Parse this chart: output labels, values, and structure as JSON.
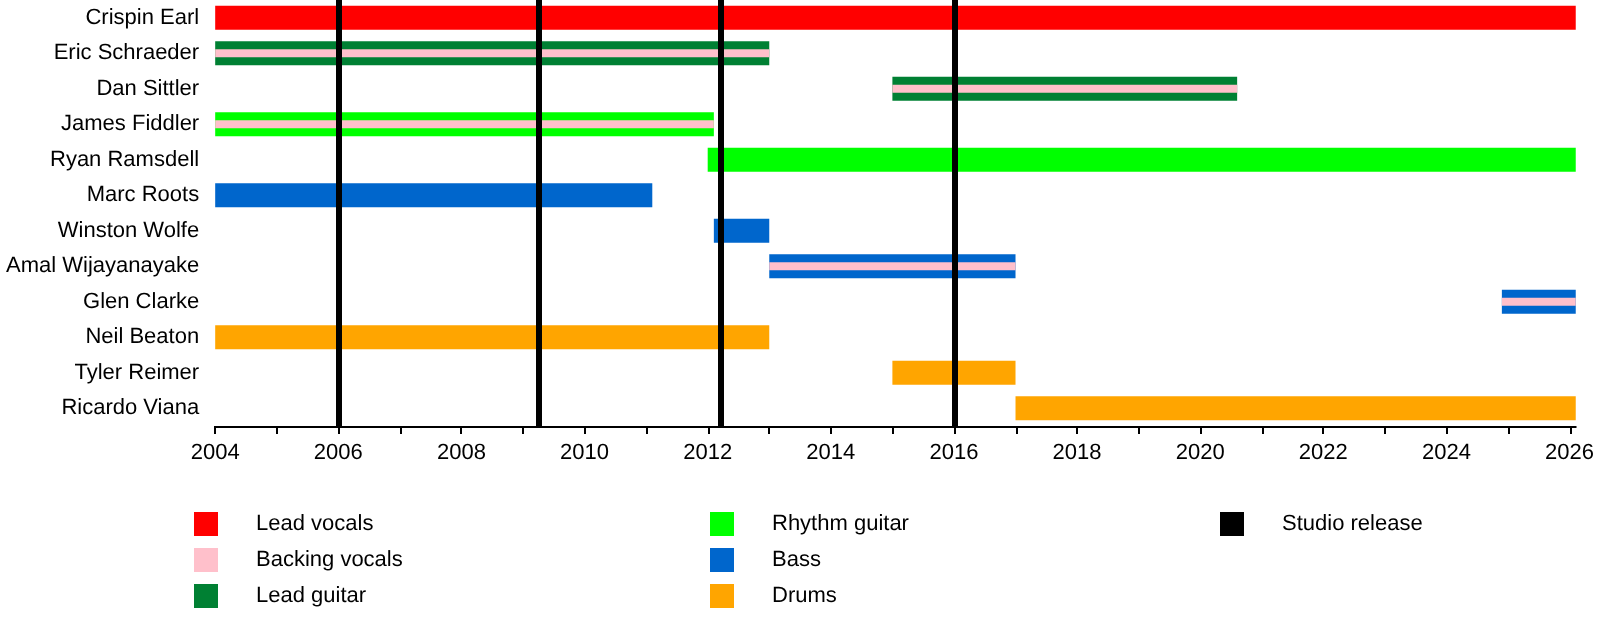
{
  "chart_data": {
    "type": "bar",
    "orientation": "horizontal",
    "categories": [
      "Crispin Earl",
      "Eric Schraeder",
      "Dan Sittler",
      "James Fiddler",
      "Ryan Ramsdell",
      "Marc Roots",
      "Winston Wolfe",
      "Amal Wijayanayake",
      "Glen Clarke",
      "Neil Beaton",
      "Tyler Reimer",
      "Ricardo Viana"
    ],
    "series": [
      {
        "name": "Lead vocals",
        "color": "#ff0000",
        "base": [
          2004,
          null,
          null,
          null,
          null,
          null,
          null,
          null,
          null,
          null,
          null,
          null
        ],
        "values": [
          22.1,
          null,
          null,
          null,
          null,
          null,
          null,
          null,
          null,
          null,
          null,
          null
        ]
      },
      {
        "name": "Backing vocals",
        "color": "#ffc0cb",
        "base": [
          null,
          2004,
          2015,
          2004,
          null,
          null,
          null,
          2013,
          2024.9,
          null,
          null,
          null
        ],
        "values": [
          null,
          9,
          5.6,
          8.1,
          null,
          null,
          null,
          4,
          1.2,
          null,
          null,
          null
        ]
      },
      {
        "name": "Lead guitar",
        "color": "#008033",
        "base": [
          null,
          2004,
          2015,
          null,
          null,
          null,
          null,
          null,
          null,
          null,
          null,
          null
        ],
        "values": [
          null,
          9,
          5.6,
          null,
          null,
          null,
          null,
          null,
          null,
          null,
          null,
          null
        ]
      },
      {
        "name": "Rhythm guitar",
        "color": "#00ff00",
        "base": [
          null,
          null,
          null,
          2004,
          2012,
          null,
          null,
          null,
          null,
          null,
          null,
          null
        ],
        "values": [
          null,
          null,
          null,
          8.1,
          14.1,
          null,
          null,
          null,
          null,
          null,
          null,
          null
        ]
      },
      {
        "name": "Bass",
        "color": "#0066cc",
        "base": [
          null,
          null,
          null,
          null,
          null,
          2004,
          2012.1,
          2013,
          2024.9,
          null,
          null,
          null
        ],
        "values": [
          null,
          null,
          null,
          null,
          null,
          7.1,
          0.9,
          4,
          1.2,
          null,
          null,
          null
        ]
      },
      {
        "name": "Drums",
        "color": "#ffa500",
        "base": [
          null,
          null,
          null,
          null,
          null,
          null,
          null,
          null,
          null,
          2004,
          2015,
          2017
        ],
        "values": [
          null,
          null,
          null,
          null,
          null,
          null,
          null,
          null,
          null,
          9,
          2,
          9.1
        ]
      }
    ],
    "xlim": [
      2004,
      2026.1
    ],
    "xticks": [
      2004,
      {
        "value": 2005,
        "label": null
      },
      2006,
      {
        "value": 2007,
        "label": null
      },
      2008,
      {
        "value": 2009,
        "label": null
      },
      2010,
      {
        "value": 2011,
        "label": null
      },
      2012,
      {
        "value": 2013,
        "label": null
      },
      2014,
      {
        "value": 2015,
        "label": null
      },
      2016,
      {
        "value": 2017,
        "label": null
      },
      2018,
      {
        "value": 2019,
        "label": null
      },
      2020,
      {
        "value": 2021,
        "label": null
      },
      2022,
      {
        "value": 2023,
        "label": null
      },
      2024,
      {
        "value": 2025,
        "label": null
      },
      2026
    ],
    "ref_lines": [
      {
        "axis": "x",
        "value": 2006,
        "label": "Studio release",
        "color": "#000000"
      },
      {
        "axis": "x",
        "value": 2009.25,
        "label": null,
        "color": "#000000"
      },
      {
        "axis": "x",
        "value": 2012.2,
        "label": null,
        "color": "#000000"
      },
      {
        "axis": "x",
        "value": 2016,
        "label": null,
        "color": "#000000"
      }
    ],
    "legend": "bottom",
    "grid": false
  }
}
